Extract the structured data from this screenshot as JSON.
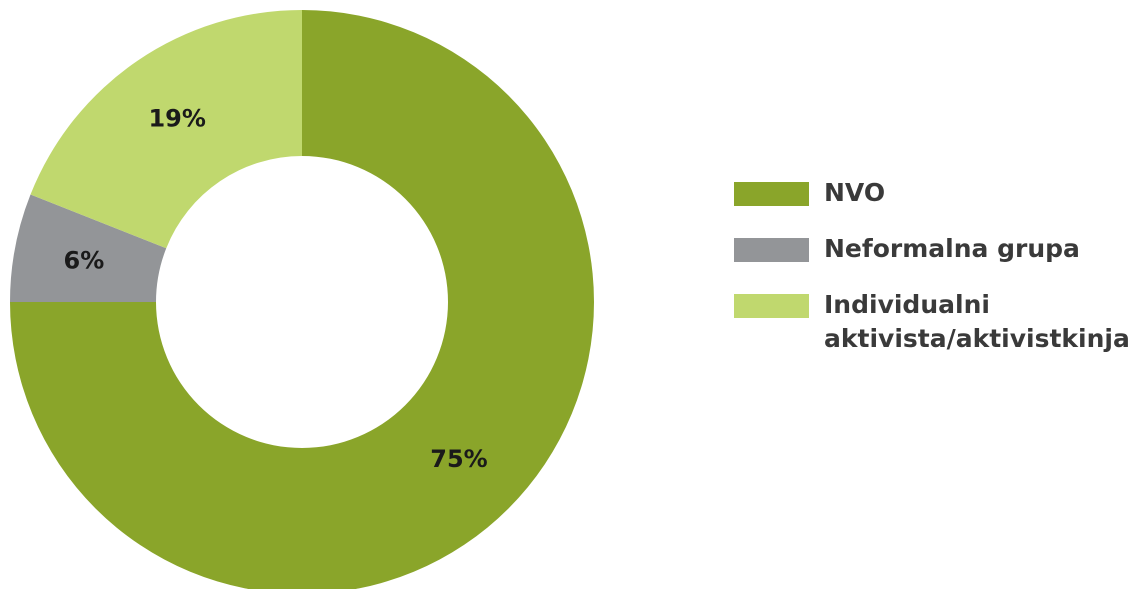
{
  "chart_data": {
    "type": "pie",
    "variant": "donut",
    "categories": [
      "NVO",
      "Neformalna grupa",
      "Individualni aktivista/aktivistkinja"
    ],
    "values": [
      75,
      6,
      19
    ],
    "value_labels": [
      "75%",
      "6%",
      "19%"
    ],
    "colors": [
      "#8aa52a",
      "#939598",
      "#c0d86e"
    ],
    "legend_placement": "right"
  },
  "legend": {
    "items": [
      {
        "label": "NVO",
        "color": "#8aa52a"
      },
      {
        "label": "Neformalna grupa",
        "color": "#939598"
      },
      {
        "label": "Individualni aktivista/aktivistkinja",
        "color": "#c0d86e"
      }
    ]
  }
}
